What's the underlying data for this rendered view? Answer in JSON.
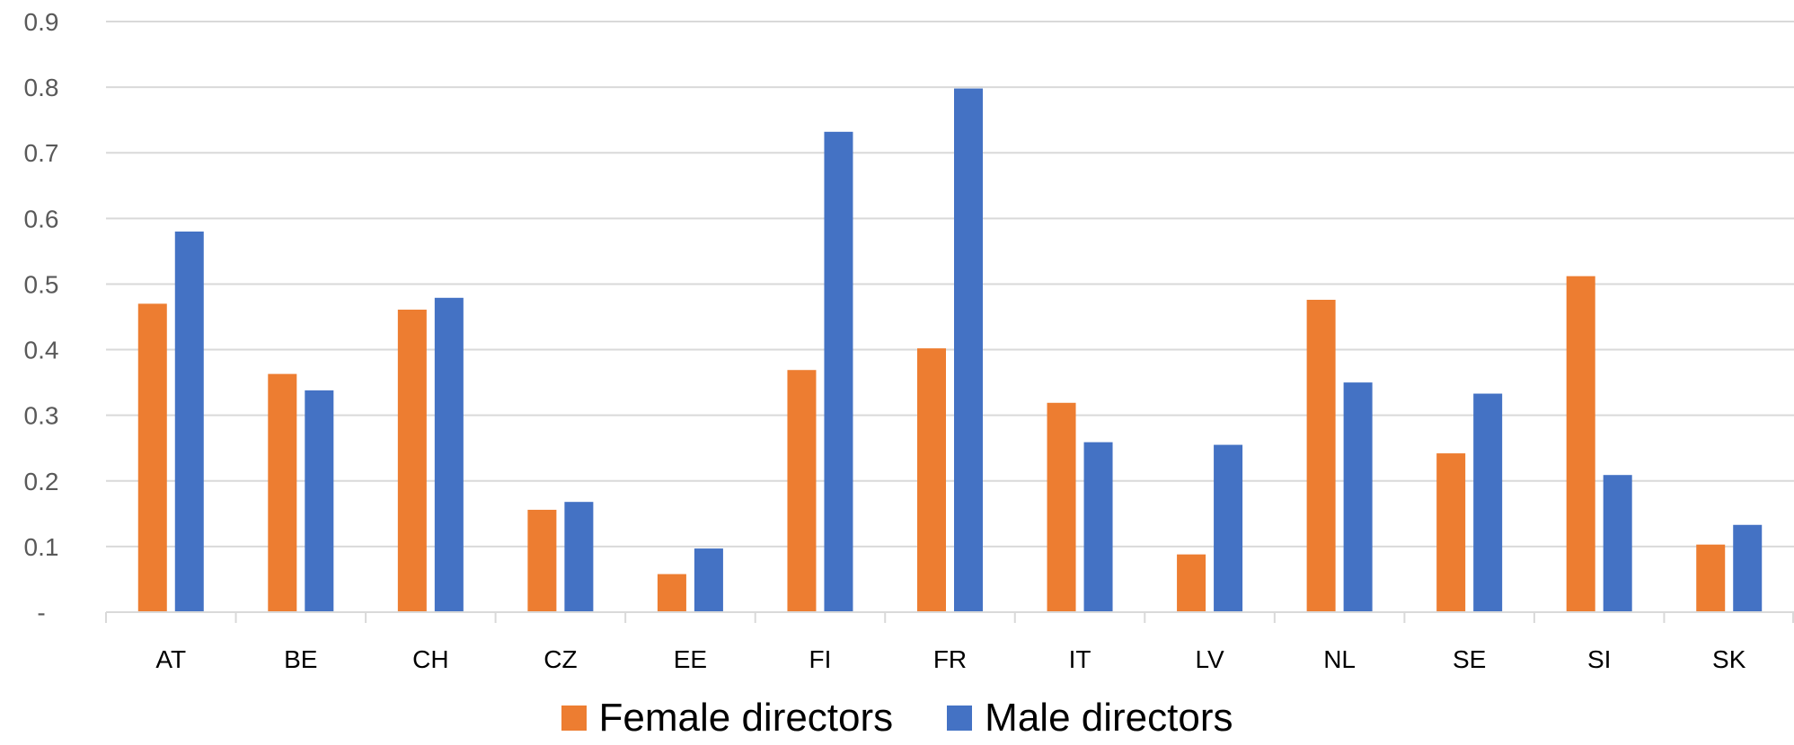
{
  "chart_data": {
    "type": "bar",
    "categories": [
      "AT",
      "BE",
      "CH",
      "CZ",
      "EE",
      "FI",
      "FR",
      "IT",
      "LV",
      "NL",
      "SE",
      "SI",
      "SK"
    ],
    "series": [
      {
        "name": "Female directors",
        "color": "#ED7D31",
        "values": [
          0.47,
          0.363,
          0.461,
          0.156,
          0.058,
          0.369,
          0.402,
          0.319,
          0.088,
          0.476,
          0.242,
          0.512,
          0.103
        ]
      },
      {
        "name": "Male directors",
        "color": "#4472C4",
        "values": [
          0.58,
          0.338,
          0.479,
          0.168,
          0.097,
          0.732,
          0.798,
          0.259,
          0.255,
          0.35,
          0.333,
          0.209,
          0.133
        ]
      }
    ],
    "yticks": [
      "-",
      "0.1",
      "0.2",
      "0.3",
      "0.4",
      "0.5",
      "0.6",
      "0.7",
      "0.8",
      "0.9"
    ],
    "ylim": [
      0,
      0.9
    ],
    "grid": true,
    "legend": "bottom-center",
    "title": "",
    "xlabel": "",
    "ylabel": ""
  }
}
